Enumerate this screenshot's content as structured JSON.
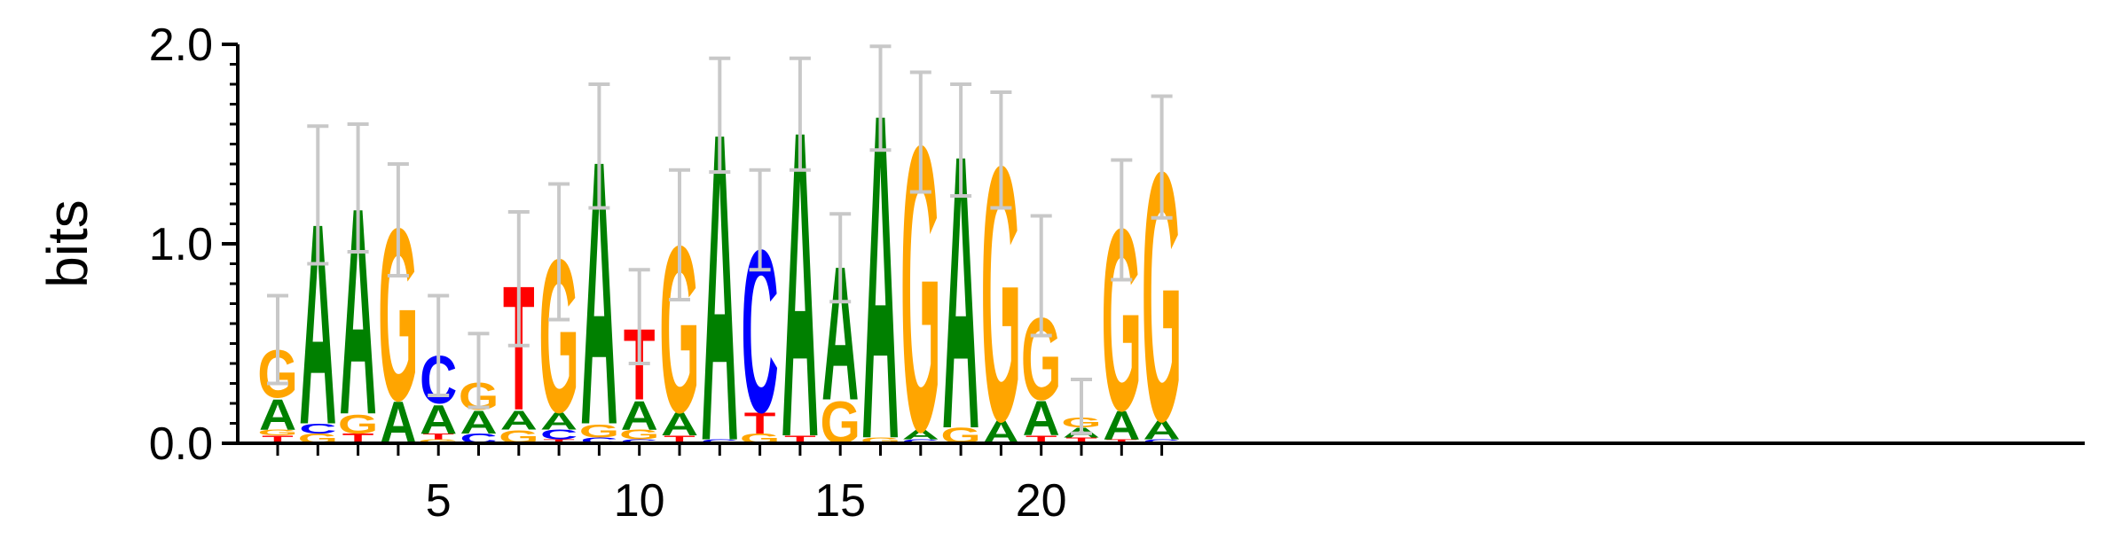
{
  "chart_data": {
    "type": "sequence-logo",
    "ylabel": "bits",
    "ylim": [
      0,
      2.0
    ],
    "y_ticks": [
      "0.0",
      "1.0",
      "2.0"
    ],
    "x_ticks": [
      5,
      10,
      15,
      20
    ],
    "colors": {
      "A": "#008000",
      "C": "#0000ff",
      "G": "#ffa500",
      "T": "#ff0000",
      "error_bar": "#c8c8c8"
    },
    "positions": [
      {
        "pos": 1,
        "stack": [
          [
            "T",
            0.04
          ],
          [
            "G",
            0.03
          ],
          [
            "A",
            0.16
          ],
          [
            "G",
            0.25
          ]
        ],
        "err": [
          0.3,
          0.74
        ]
      },
      {
        "pos": 2,
        "stack": [
          [
            "G",
            0.05
          ],
          [
            "C",
            0.05
          ],
          [
            "A",
            1.05
          ]
        ],
        "err": [
          0.9,
          1.59
        ]
      },
      {
        "pos": 3,
        "stack": [
          [
            "T",
            0.05
          ],
          [
            "G",
            0.1
          ],
          [
            "A",
            1.08
          ]
        ],
        "err": [
          0.96,
          1.6
        ]
      },
      {
        "pos": 4,
        "stack": [
          [
            "A",
            0.22
          ],
          [
            "G",
            0.9
          ]
        ],
        "err": [
          0.84,
          1.4
        ]
      },
      {
        "pos": 5,
        "stack": [
          [
            "G",
            0.02
          ],
          [
            "T",
            0.03
          ],
          [
            "A",
            0.15
          ],
          [
            "C",
            0.25
          ]
        ],
        "err": [
          0.24,
          0.74
        ]
      },
      {
        "pos": 6,
        "stack": [
          [
            "C",
            0.05
          ],
          [
            "A",
            0.12
          ],
          [
            "G",
            0.14
          ]
        ],
        "err": [
          0.18,
          0.55
        ]
      },
      {
        "pos": 7,
        "stack": [
          [
            "G",
            0.07
          ],
          [
            "A",
            0.1
          ],
          [
            "T",
            0.65
          ]
        ],
        "err": [
          0.49,
          1.16
        ]
      },
      {
        "pos": 8,
        "stack": [
          [
            "T",
            0.02
          ],
          [
            "C",
            0.05
          ],
          [
            "A",
            0.09
          ],
          [
            "G",
            0.8
          ]
        ],
        "err": [
          0.62,
          1.3
        ]
      },
      {
        "pos": 9,
        "stack": [
          [
            "C",
            0.03
          ],
          [
            "G",
            0.07
          ],
          [
            "A",
            1.38
          ]
        ],
        "err": [
          1.18,
          1.8
        ]
      },
      {
        "pos": 10,
        "stack": [
          [
            "C",
            0.02
          ],
          [
            "G",
            0.05
          ],
          [
            "A",
            0.15
          ],
          [
            "T",
            0.37
          ]
        ],
        "err": [
          0.4,
          0.87
        ]
      },
      {
        "pos": 11,
        "stack": [
          [
            "T",
            0.04
          ],
          [
            "A",
            0.12
          ],
          [
            "G",
            0.87
          ]
        ],
        "err": [
          0.72,
          1.37
        ]
      },
      {
        "pos": 12,
        "stack": [
          [
            "C",
            0.02
          ],
          [
            "A",
            1.61
          ]
        ],
        "err": [
          1.36,
          1.93
        ]
      },
      {
        "pos": 13,
        "stack": [
          [
            "G",
            0.05
          ],
          [
            "T",
            0.11
          ],
          [
            "C",
            0.85
          ]
        ],
        "err": [
          0.87,
          1.37
        ]
      },
      {
        "pos": 14,
        "stack": [
          [
            "T",
            0.04
          ],
          [
            "A",
            1.6
          ]
        ],
        "err": [
          1.37,
          1.93
        ]
      },
      {
        "pos": 15,
        "stack": [
          [
            "G",
            0.22
          ],
          [
            "A",
            0.7
          ]
        ],
        "err": [
          0.71,
          1.15
        ]
      },
      {
        "pos": 16,
        "stack": [
          [
            "G",
            0.03
          ],
          [
            "A",
            1.7
          ]
        ],
        "err": [
          1.47,
          1.99
        ]
      },
      {
        "pos": 17,
        "stack": [
          [
            "C",
            0.02
          ],
          [
            "A",
            0.05
          ],
          [
            "G",
            1.49
          ]
        ],
        "err": [
          1.26,
          1.86
        ]
      },
      {
        "pos": 18,
        "stack": [
          [
            "G",
            0.08
          ],
          [
            "A",
            1.43
          ]
        ],
        "err": [
          1.24,
          1.8
        ]
      },
      {
        "pos": 19,
        "stack": [
          [
            "A",
            0.12
          ],
          [
            "G",
            1.33
          ]
        ],
        "err": [
          1.18,
          1.76
        ]
      },
      {
        "pos": 20,
        "stack": [
          [
            "T",
            0.04
          ],
          [
            "A",
            0.18
          ],
          [
            "G",
            0.43
          ]
        ],
        "err": [
          0.54,
          1.14
        ]
      },
      {
        "pos": 21,
        "stack": [
          [
            "T",
            0.03
          ],
          [
            "A",
            0.05
          ],
          [
            "G",
            0.05
          ]
        ],
        "err": [
          0.05,
          0.32
        ]
      },
      {
        "pos": 22,
        "stack": [
          [
            "T",
            0.02
          ],
          [
            "A",
            0.15
          ],
          [
            "G",
            0.95
          ]
        ],
        "err": [
          0.82,
          1.42
        ]
      },
      {
        "pos": 23,
        "stack": [
          [
            "C",
            0.02
          ],
          [
            "A",
            0.1
          ],
          [
            "G",
            1.3
          ]
        ],
        "err": [
          1.13,
          1.74
        ]
      }
    ]
  }
}
